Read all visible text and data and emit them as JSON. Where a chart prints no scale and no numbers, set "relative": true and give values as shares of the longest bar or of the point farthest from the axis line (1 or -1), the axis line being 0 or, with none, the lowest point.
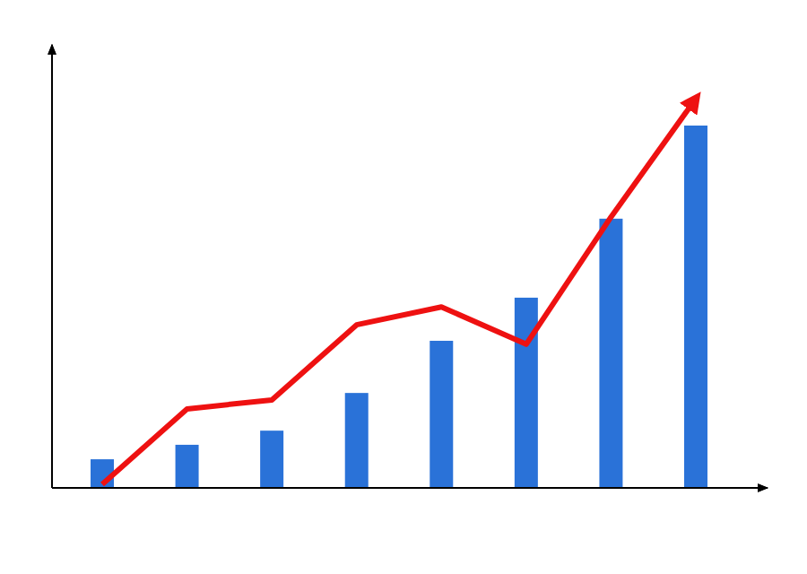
{
  "chart_data": [
    {
      "type": "bar",
      "relative": true,
      "categories": [
        null,
        null,
        null,
        null,
        null,
        null,
        null,
        null
      ],
      "series": [
        {
          "color": "#2a72d8",
          "values": [
            0.079,
            0.119,
            0.158,
            0.262,
            0.406,
            0.525,
            0.743,
            1.0
          ]
        }
      ],
      "grid": false,
      "legend": false
    },
    {
      "type": "line",
      "relative": true,
      "categories": [
        null,
        null,
        null,
        null,
        null,
        null,
        null,
        null
      ],
      "series": [
        {
          "color": "#ee1111",
          "values": [
            0.009,
            0.203,
            0.226,
            0.419,
            0.465,
            0.369,
            0.696,
            1.0
          ]
        }
      ],
      "grid": false,
      "legend": false,
      "marker": "none",
      "line_style": "solid"
    }
  ]
}
